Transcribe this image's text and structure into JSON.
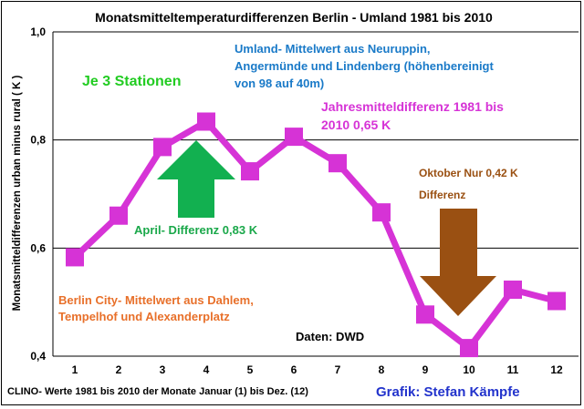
{
  "chart_data": {
    "type": "line",
    "title": "Monatsmitteltemperaturdifferenzen Berlin - Umland 1981 bis 2010",
    "ylabel": "Monatsmitteldifferenzen urban minus rural ( K )",
    "xlabel": "CLINO- Werte 1981 bis 2010 der Monate Januar (1) bis Dez. (12)",
    "categories": [
      "1",
      "2",
      "3",
      "4",
      "5",
      "6",
      "7",
      "8",
      "9",
      "10",
      "11",
      "12"
    ],
    "series": [
      {
        "values": [
          0.583,
          0.66,
          0.787,
          0.834,
          0.742,
          0.806,
          0.757,
          0.666,
          0.477,
          0.415,
          0.523,
          0.502
        ]
      }
    ],
    "ylim": [
      0.4,
      1.0
    ],
    "yticks": [
      "0,4",
      "0,6",
      "0,8",
      "1,0"
    ],
    "grid": true,
    "colors": {
      "series": "#d633d6",
      "title": "#000000",
      "umland_note": "#1a7ac8",
      "stations_note": "#22cc22",
      "annual_note": "#d633d6",
      "april_note": "#1aa84a",
      "april_arrow": "#12b050",
      "october_note": "#9a5012",
      "october_arrow": "#9a5012",
      "city_note": "#e8702a",
      "credit": "#2233cc"
    },
    "annotations": {
      "umland_line1": "Umland- Mittelwert aus Neuruppin,",
      "umland_line2": "Angermünde und Lindenberg (höhenbereinigt",
      "umland_line3": "von 98 auf 40m)",
      "stations": "Je 3 Stationen",
      "annual_line1": "Jahresmitteldifferenz 1981 bis",
      "annual_line2": "2010 0,65 K",
      "april": "April-  Differenz 0,83 K",
      "october_line1": "Oktober  Nur 0,42 K",
      "october_line2": "Differenz",
      "city_line1": "Berlin City- Mittelwert aus Dahlem,",
      "city_line2": "Tempelhof und Alexanderplatz",
      "source": "Daten: DWD",
      "credit": "Grafik: Stefan Kämpfe"
    }
  }
}
